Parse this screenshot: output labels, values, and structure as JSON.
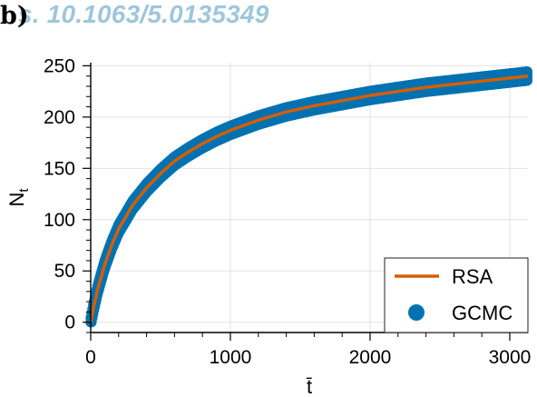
{
  "panel_label": "b)",
  "watermark": "s. 10.1063/5.0135349",
  "chart_data": {
    "type": "scatter",
    "title": "",
    "xlabel": "t̄",
    "ylabel": "N_t",
    "xlim": [
      0,
      3130
    ],
    "ylim": [
      -10,
      253
    ],
    "xticks": [
      0,
      1000,
      2000,
      3000
    ],
    "yticks": [
      0,
      50,
      100,
      150,
      200,
      250
    ],
    "grid": true,
    "legend_position": "bottom-right",
    "series": [
      {
        "name": "RSA",
        "kind": "line",
        "color": "#d55e00",
        "x": [
          0,
          20,
          50,
          100,
          150,
          200,
          300,
          400,
          500,
          600,
          700,
          800,
          900,
          1000,
          1200,
          1400,
          1600,
          1800,
          2000,
          2200,
          2400,
          2600,
          2800,
          3000,
          3130
        ],
        "y": [
          0,
          14,
          32,
          56,
          75,
          91,
          114,
          131,
          145,
          157,
          166,
          174,
          181,
          187,
          197,
          205,
          211,
          216,
          221,
          225,
          229,
          232,
          235,
          238,
          240
        ]
      },
      {
        "name": "GCMC",
        "kind": "scatter",
        "color": "#0072b2",
        "x": [
          0,
          20,
          50,
          100,
          150,
          200,
          300,
          400,
          500,
          600,
          700,
          800,
          900,
          1000,
          1200,
          1400,
          1600,
          1800,
          2000,
          2200,
          2400,
          2600,
          2800,
          3000,
          3130
        ],
        "y": [
          0,
          14,
          32,
          56,
          75,
          91,
          114,
          131,
          145,
          157,
          166,
          174,
          181,
          187,
          197,
          205,
          211,
          216,
          221,
          225,
          229,
          232,
          235,
          238,
          240
        ]
      }
    ]
  }
}
